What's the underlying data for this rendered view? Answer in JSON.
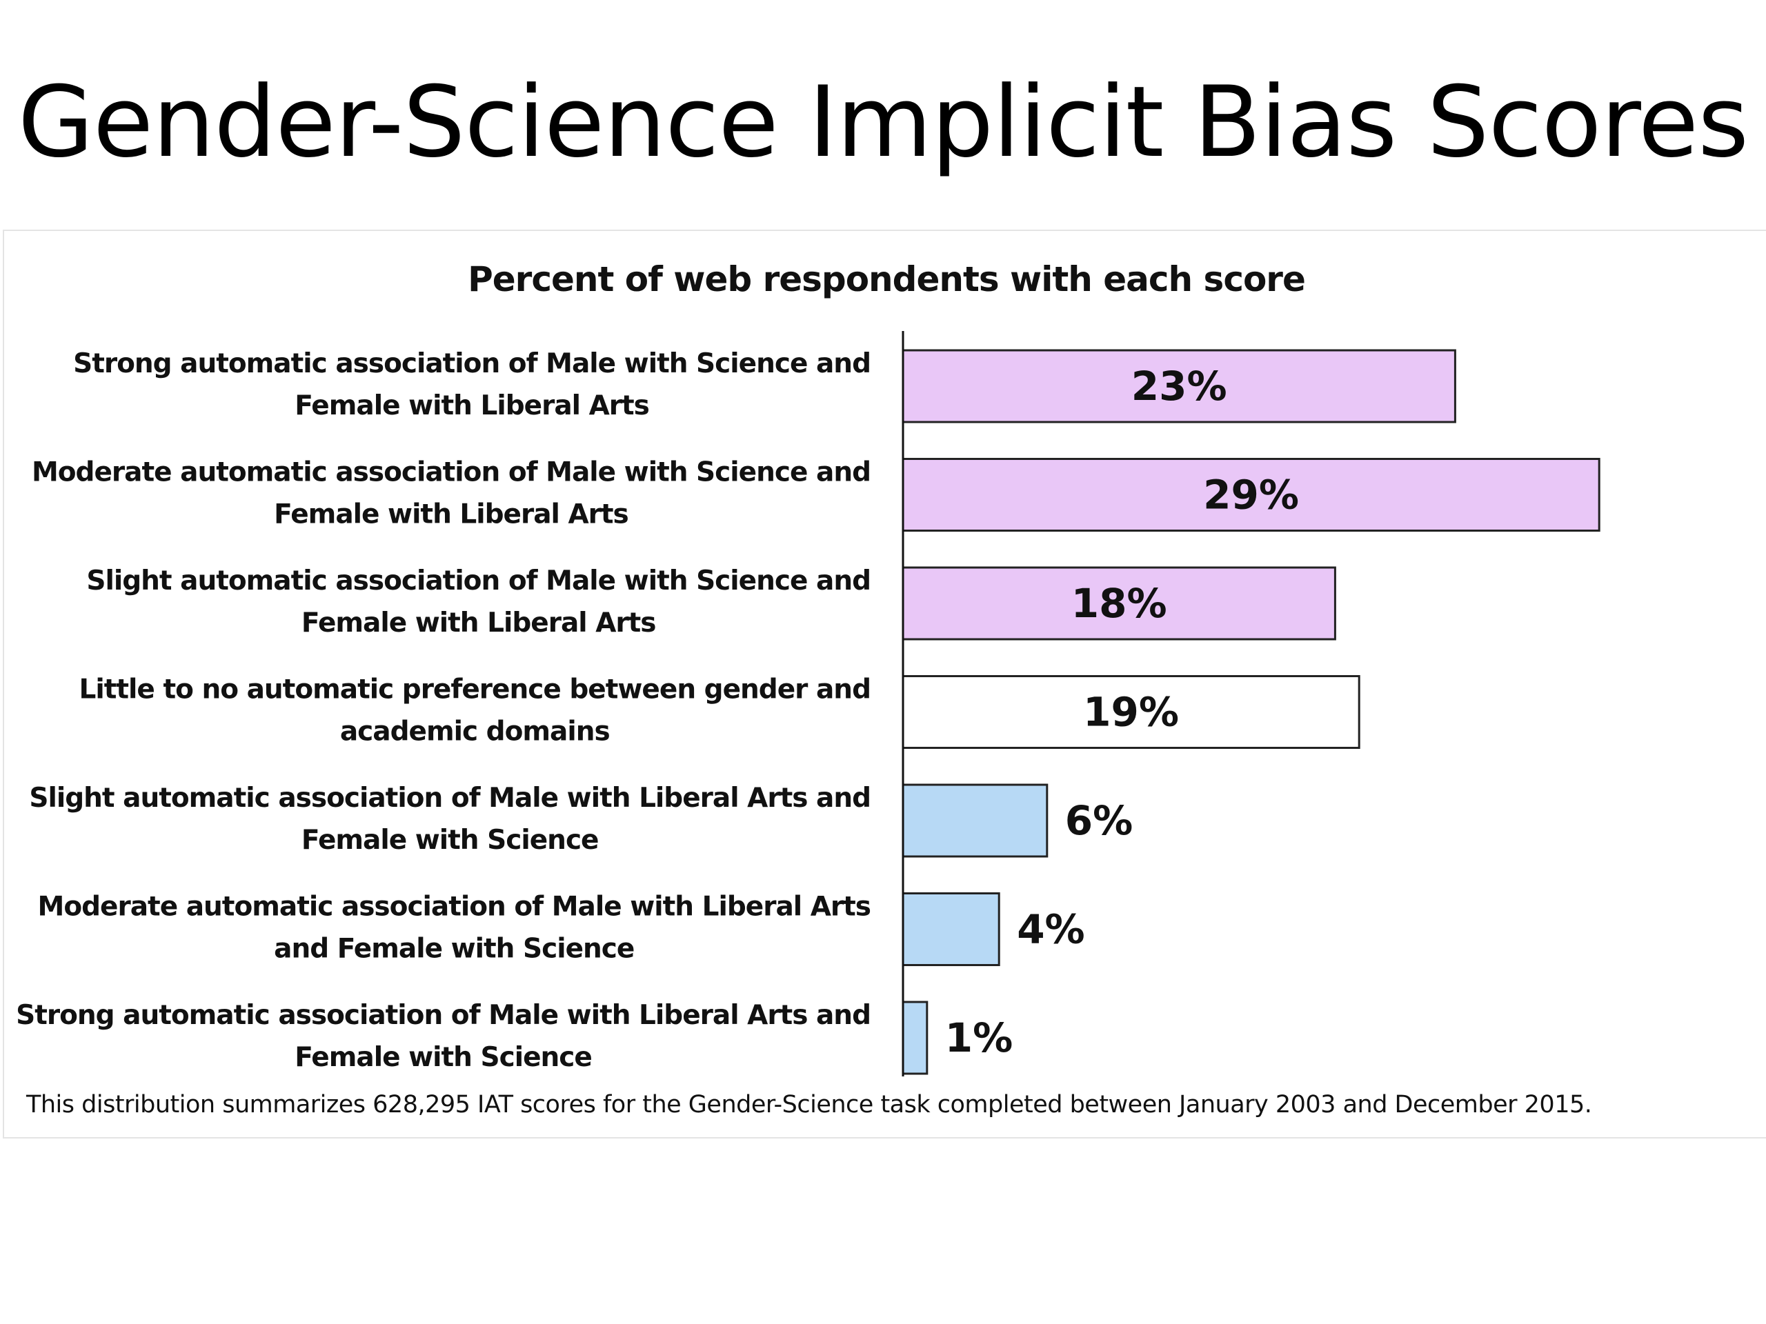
{
  "slide": {
    "title": "Gender-Science Implicit Bias Scores"
  },
  "chart_data": {
    "type": "bar",
    "orientation": "horizontal",
    "title": "Percent of web respondents with each score",
    "categories": [
      [
        "Strong automatic association of Male with Science and",
        "Female with Liberal Arts"
      ],
      [
        "Moderate automatic association of Male with Science and",
        "Female with Liberal Arts"
      ],
      [
        "Slight automatic association of Male with Science and",
        "Female with Liberal Arts"
      ],
      [
        "Little to no automatic preference between gender and",
        "academic domains"
      ],
      [
        "Slight automatic association of Male with Liberal Arts and",
        "Female with Science"
      ],
      [
        "Moderate automatic association of Male with Liberal Arts",
        "and Female with Science"
      ],
      [
        "Strong automatic association of Male with Liberal Arts and",
        "Female with Science"
      ]
    ],
    "values": [
      23,
      29,
      18,
      19,
      6,
      4,
      1
    ],
    "value_labels": [
      "23%",
      "29%",
      "18%",
      "19%",
      "6%",
      "4%",
      "1%"
    ],
    "colors": [
      "#e9c7f7",
      "#e9c7f7",
      "#e9c7f7",
      "#ffffff",
      "#b7d9f5",
      "#b7d9f5",
      "#b7d9f5"
    ],
    "bar_outline": "#222222",
    "grid": false,
    "footnote": "This distribution summarizes 628,295 IAT scores for the Gender-Science  task completed between January  2003 and December 2015."
  }
}
